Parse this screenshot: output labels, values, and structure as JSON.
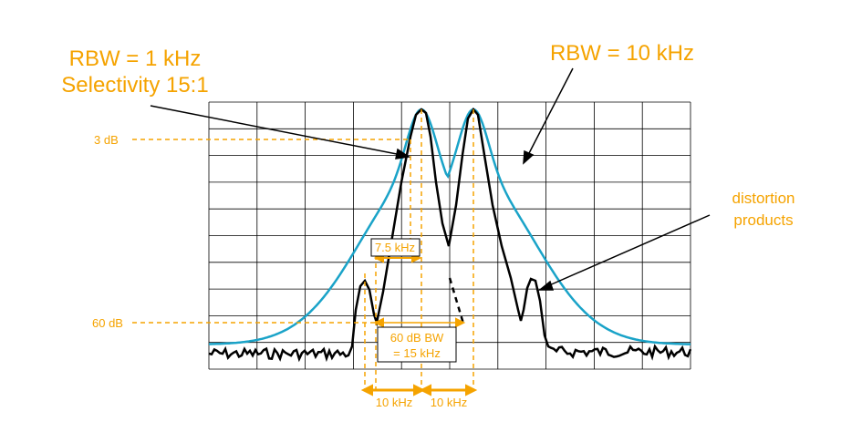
{
  "colors": {
    "wide_filter": "#1aa3c8",
    "narrow_filter": "#000000",
    "annotation": "#f5a300",
    "grid": "#000000",
    "background": "#ffffff"
  },
  "labels": {
    "rbw_narrow_line1": "RBW = 1 kHz",
    "rbw_narrow_line2": "Selectivity 15:1",
    "rbw_wide": "RBW = 10 kHz",
    "distortion_line1": "distortion",
    "distortion_line2": "products",
    "level_3db": "3 dB",
    "level_60db": "60 dB",
    "bw_3db": "7.5 kHz",
    "bw_60db_line1": "60 dB BW",
    "bw_60db_line2": "= 15 kHz",
    "spacing_left": "10 kHz",
    "spacing_right": "10 kHz"
  }
}
